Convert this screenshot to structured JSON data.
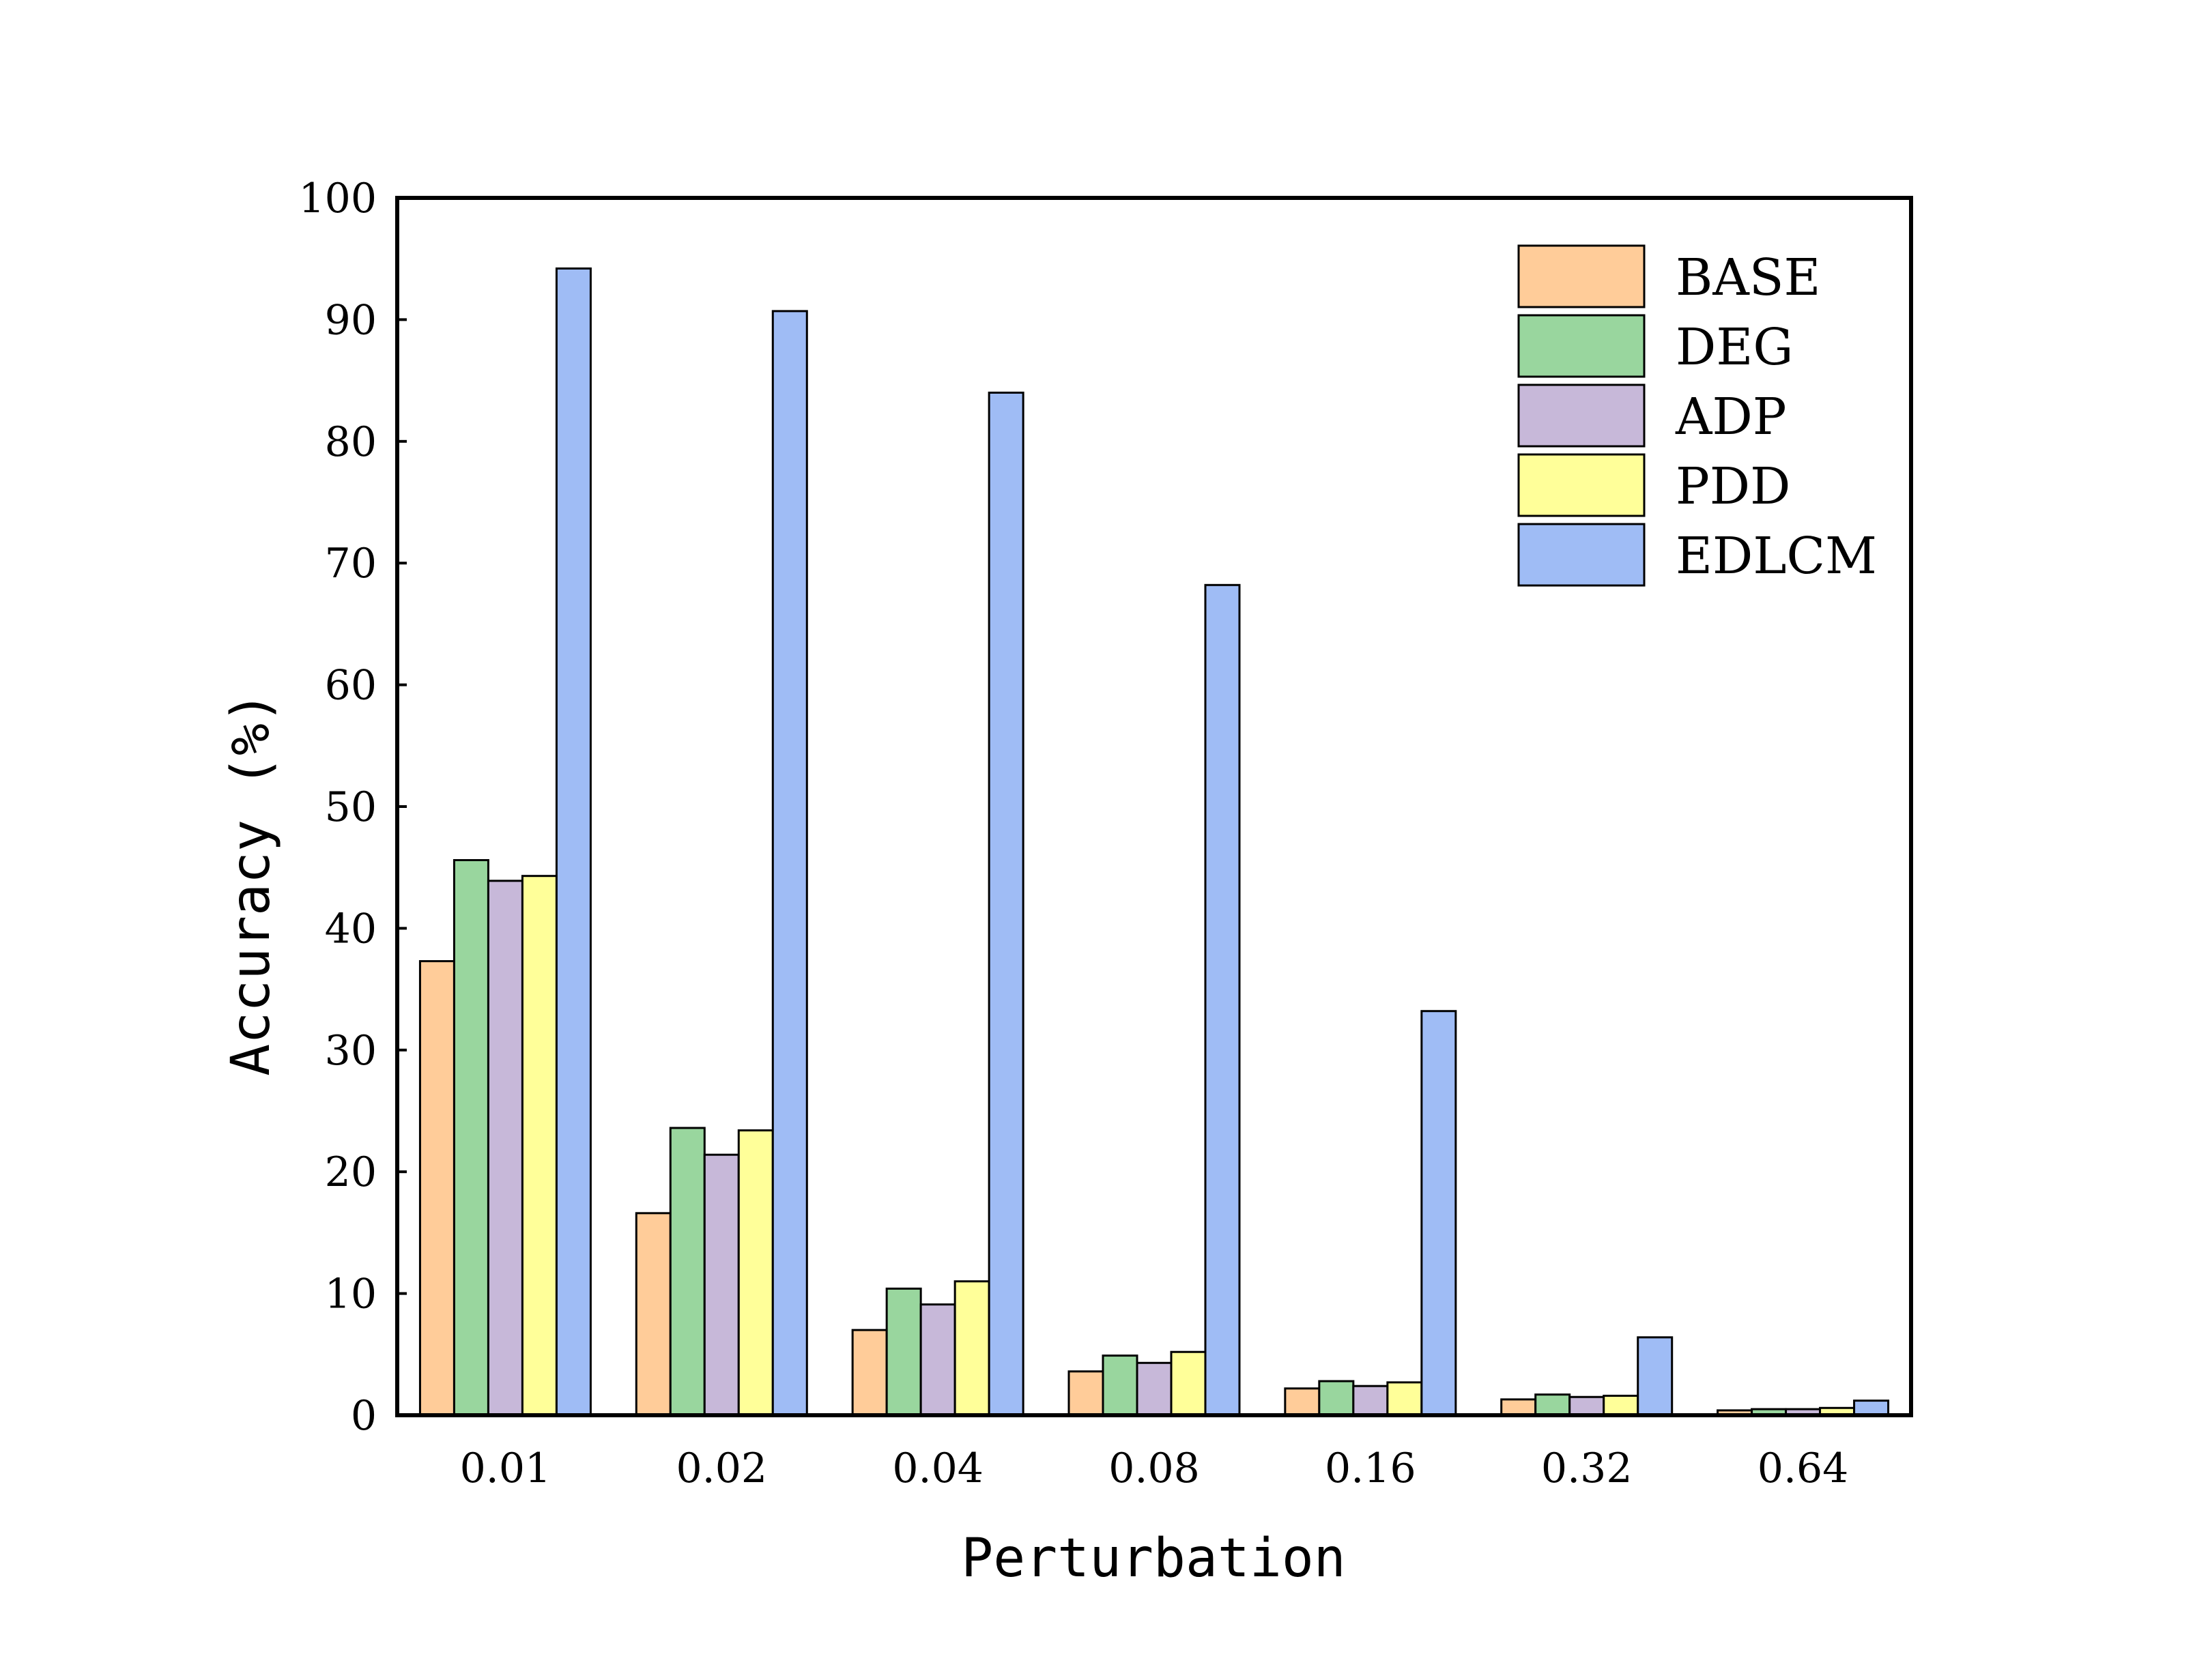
{
  "chart_data": {
    "type": "bar",
    "title": "",
    "xlabel": "Perturbation",
    "ylabel": "Accuracy (%)",
    "ylim": [
      0,
      100
    ],
    "yticks": [
      0,
      10,
      20,
      30,
      40,
      50,
      60,
      70,
      80,
      90,
      100
    ],
    "grid": false,
    "legend_position": "top-right",
    "categories": [
      "0.01",
      "0.02",
      "0.04",
      "0.08",
      "0.16",
      "0.32",
      "0.64"
    ],
    "series": [
      {
        "name": "BASE",
        "color": "#FFCC99",
        "values": [
          37.3,
          16.6,
          7.0,
          3.6,
          2.2,
          1.3,
          0.4
        ]
      },
      {
        "name": "DEG",
        "color": "#99D69E",
        "values": [
          45.6,
          23.6,
          10.4,
          4.9,
          2.8,
          1.7,
          0.5
        ]
      },
      {
        "name": "ADP",
        "color": "#C7B8D9",
        "values": [
          43.9,
          21.4,
          9.1,
          4.3,
          2.4,
          1.5,
          0.5
        ]
      },
      {
        "name": "PDD",
        "color": "#FFFF99",
        "values": [
          44.3,
          23.4,
          11.0,
          5.2,
          2.7,
          1.6,
          0.6
        ]
      },
      {
        "name": "EDLCM",
        "color": "#9FBCF5",
        "values": [
          94.2,
          90.7,
          84.0,
          68.2,
          33.2,
          6.4,
          1.2
        ]
      }
    ]
  }
}
